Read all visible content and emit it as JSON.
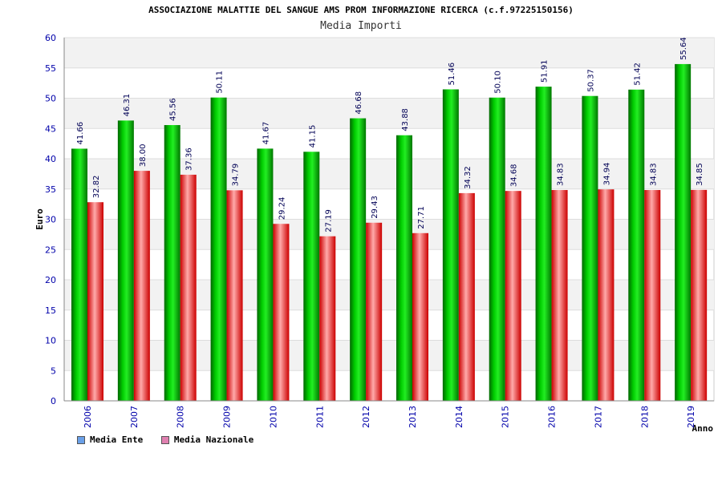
{
  "header": {
    "title": "ASSOCIAZIONE MALATTIE DEL SANGUE AMS PROM INFORMAZIONE RICERCA (c.f.97225150156)",
    "subtitle": "Media Importi"
  },
  "legend": [
    {
      "label": "Media Ente",
      "color": "#6aa0e8"
    },
    {
      "label": "Media Nazionale",
      "color": "#e080b0"
    }
  ],
  "chart_data": {
    "type": "bar",
    "title": "Media Importi",
    "xlabel": "Anno",
    "ylabel": "Euro",
    "ylim": [
      0,
      60
    ],
    "yticks": [
      0,
      5,
      10,
      15,
      20,
      25,
      30,
      35,
      40,
      45,
      50,
      55,
      60
    ],
    "categories": [
      "2006",
      "2007",
      "2008",
      "2009",
      "2010",
      "2011",
      "2012",
      "2013",
      "2014",
      "2015",
      "2016",
      "2017",
      "2018",
      "2019"
    ],
    "series": [
      {
        "name": "Media Ente",
        "color": "green",
        "values": [
          41.66,
          46.31,
          45.56,
          50.11,
          41.67,
          41.15,
          46.68,
          43.88,
          51.46,
          50.1,
          51.91,
          50.37,
          51.42,
          55.64
        ],
        "labels": [
          "41.66",
          "46.31",
          "45.56",
          "50.11",
          "41.67",
          "41.15",
          "46.68",
          "43.88",
          "51.46",
          "50.10",
          "51.91",
          "50.37",
          "51.42",
          "55.64"
        ]
      },
      {
        "name": "Media Nazionale",
        "color": "red",
        "values": [
          32.82,
          38.0,
          37.36,
          34.79,
          29.24,
          27.19,
          29.43,
          27.71,
          34.32,
          34.68,
          34.83,
          34.94,
          34.83,
          34.85
        ],
        "labels": [
          "32.82",
          "38.00",
          "37.36",
          "34.79",
          "29.24",
          "27.19",
          "29.43",
          "27.71",
          "34.32",
          "34.68",
          "34.83",
          "34.94",
          "34.83",
          "34.85"
        ]
      }
    ]
  }
}
